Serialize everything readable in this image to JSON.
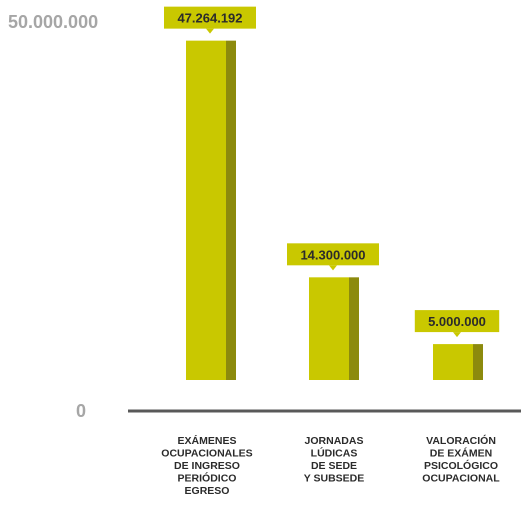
{
  "chart_data": {
    "type": "bar",
    "title": "",
    "xlabel": "",
    "ylabel": "",
    "ylim": [
      0,
      50000000
    ],
    "y_tick_labels": [
      "0",
      "50.000.000"
    ],
    "grid": false,
    "legend": "none",
    "categories": [
      [
        "EXÁMENES",
        "OCUPACIONALES",
        "DE INGRESO",
        "PERIÓDICO",
        "EGRESO"
      ],
      [
        "JORNADAS",
        "LÚDICAS",
        "DE SEDE",
        "Y SUBSEDE"
      ],
      [
        "VALORACIÓN",
        "DE EXÁMEN",
        "PSICOLÓGICO",
        "OCUPACIONAL"
      ]
    ],
    "values": [
      47264192,
      14300000,
      5000000
    ],
    "value_labels": [
      "47.264.192",
      "14.300.000",
      "5.000.000"
    ],
    "colors": {
      "bar_front": "#c9c800",
      "bar_side": "#8c8a0d",
      "label_bg": "#c9c800",
      "axis": "#595959",
      "tick_text": "#a6a6a6",
      "label_text": "#2b2b2b"
    }
  }
}
